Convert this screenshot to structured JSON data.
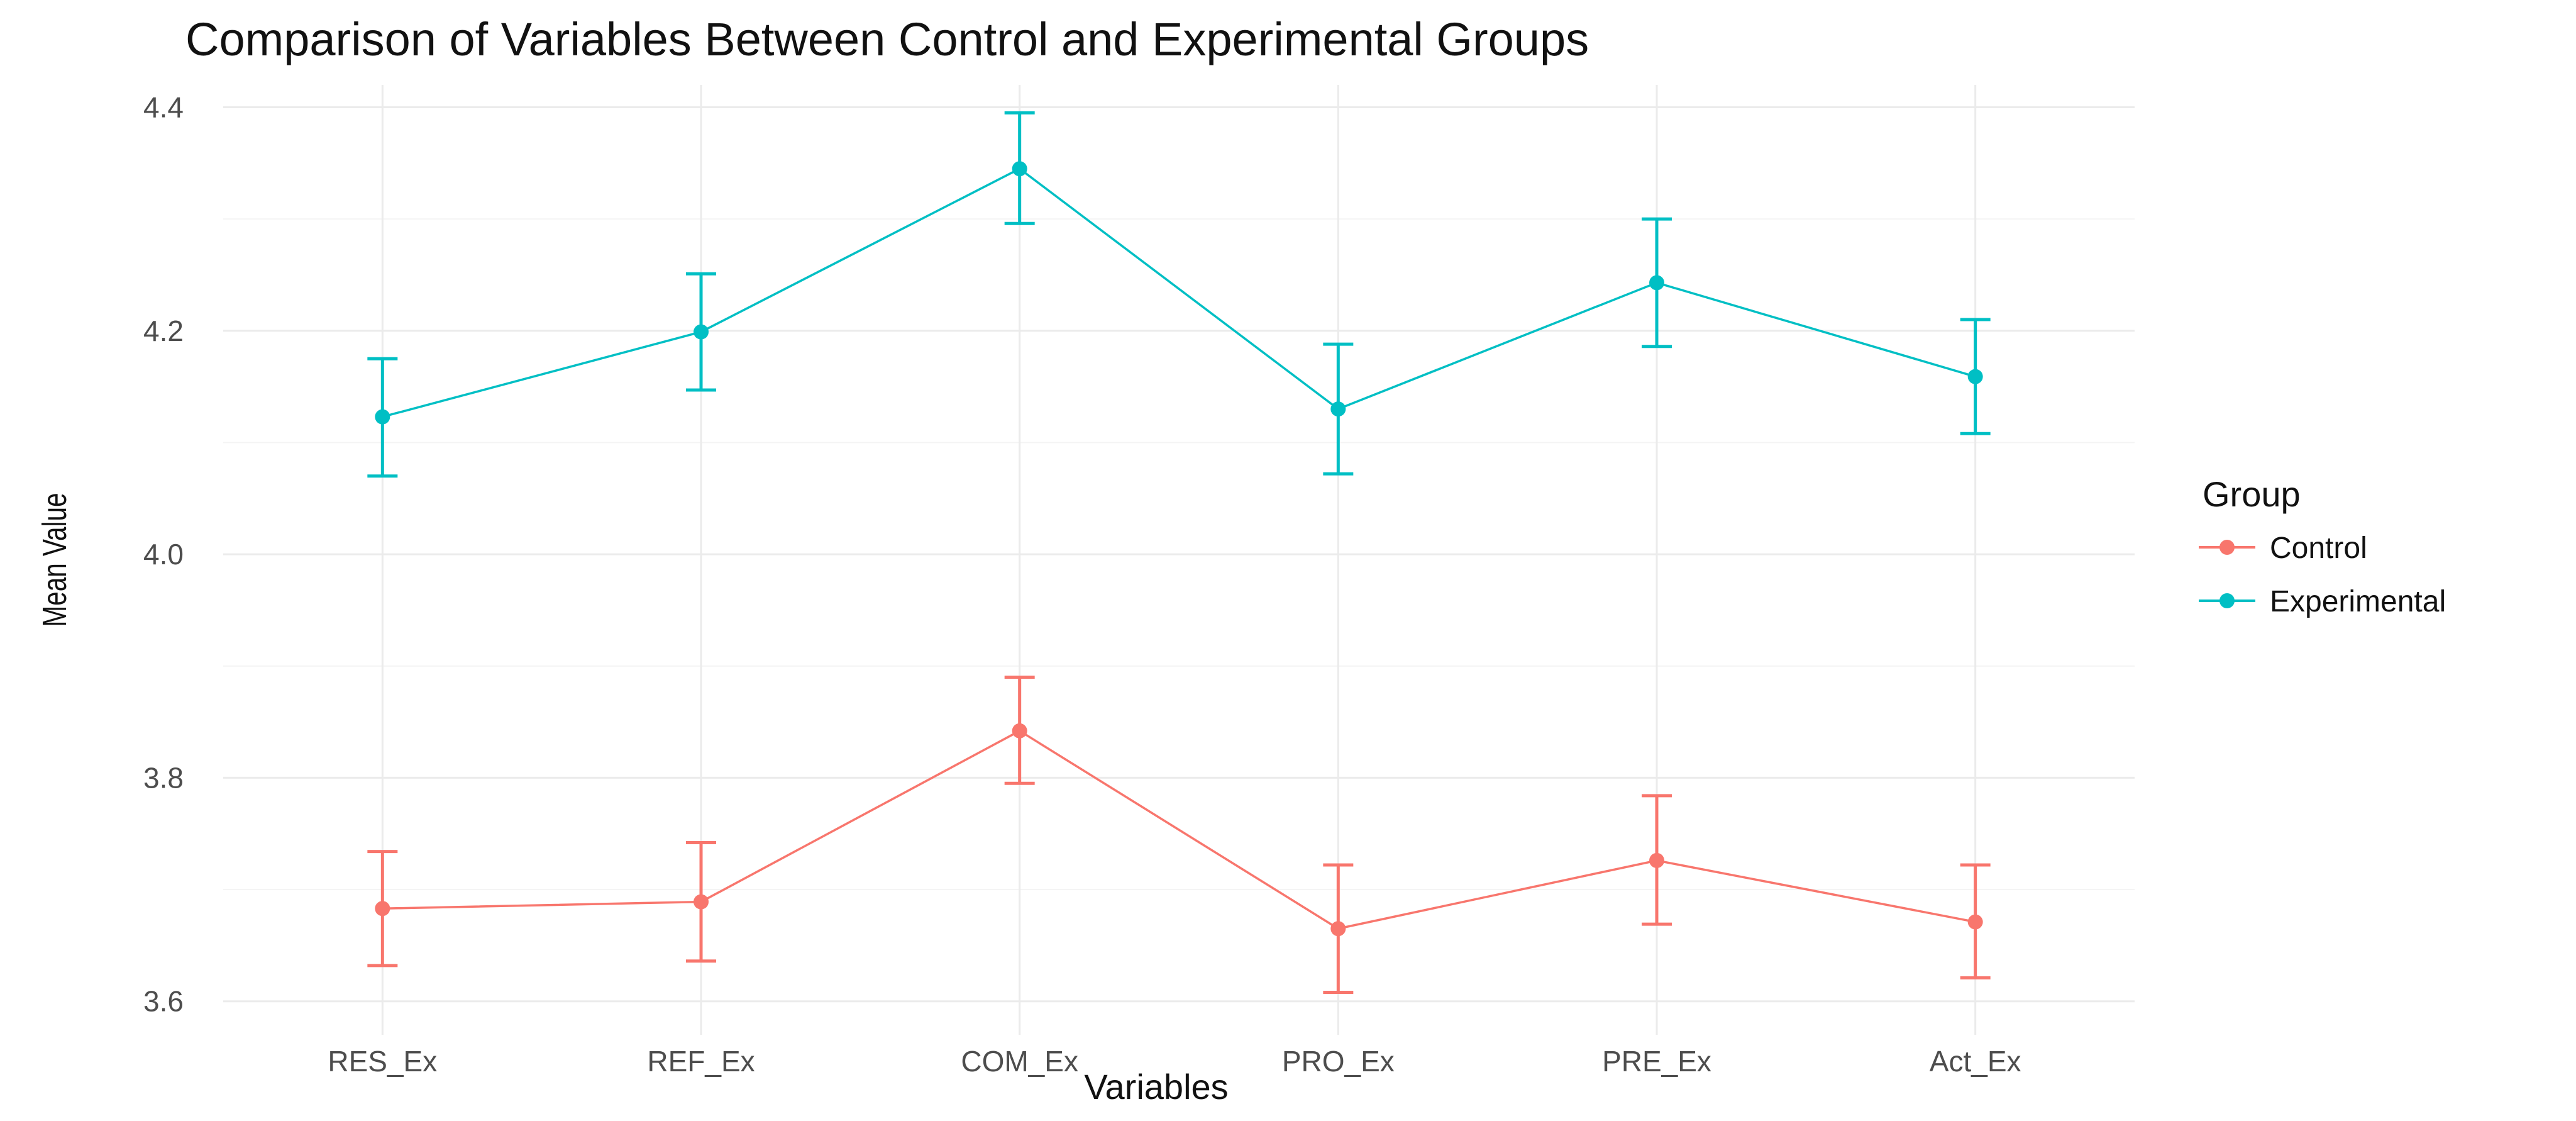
{
  "chart_data": {
    "type": "line",
    "title": "Comparison of Variables Between Control and Experimental Groups",
    "xlabel": "Variables",
    "ylabel": "Mean Value",
    "categories": [
      "RES_Ex",
      "REF_Ex",
      "COM_Ex",
      "PRO_Ex",
      "PRE_Ex",
      "Act_Ex"
    ],
    "ylim": [
      3.57,
      4.42
    ],
    "yticks": [
      "3.6",
      "3.8",
      "4.0",
      "4.2",
      "4.4"
    ],
    "legend": {
      "title": "Group",
      "position": "right"
    },
    "series": [
      {
        "name": "Control",
        "color": "#F8766D",
        "values": [
          3.683,
          3.689,
          3.842,
          3.665,
          3.726,
          3.671
        ],
        "lower": [
          3.632,
          3.636,
          3.795,
          3.608,
          3.669,
          3.621
        ],
        "upper": [
          3.734,
          3.742,
          3.89,
          3.722,
          3.784,
          3.722
        ]
      },
      {
        "name": "Experimental",
        "color": "#00BFC4",
        "values": [
          4.123,
          4.199,
          4.345,
          4.13,
          4.243,
          4.159
        ],
        "lower": [
          4.07,
          4.147,
          4.296,
          4.072,
          4.186,
          4.108
        ],
        "upper": [
          4.175,
          4.251,
          4.395,
          4.188,
          4.3,
          4.21
        ]
      }
    ]
  }
}
